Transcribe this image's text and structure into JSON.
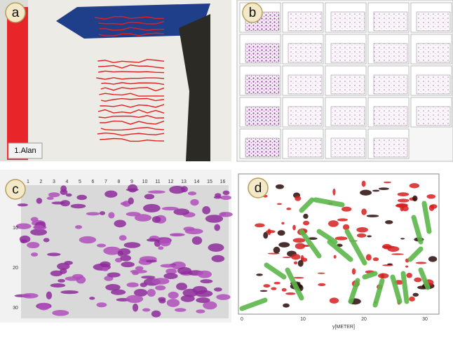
{
  "panels": [
    {
      "label": "a",
      "caption": "1.Alan"
    },
    {
      "label": "b"
    },
    {
      "label": "c",
      "x_ticks": [
        "1",
        "2",
        "3",
        "4",
        "5",
        "6",
        "7",
        "8",
        "9",
        "10",
        "11",
        "12",
        "13",
        "14",
        "15",
        "16"
      ],
      "y_ticks": [
        "10",
        "20",
        "30"
      ]
    },
    {
      "label": "d",
      "x_axis_title": "y[METER]",
      "x_ticks": [
        "0",
        "10",
        "20",
        "30"
      ]
    }
  ]
}
